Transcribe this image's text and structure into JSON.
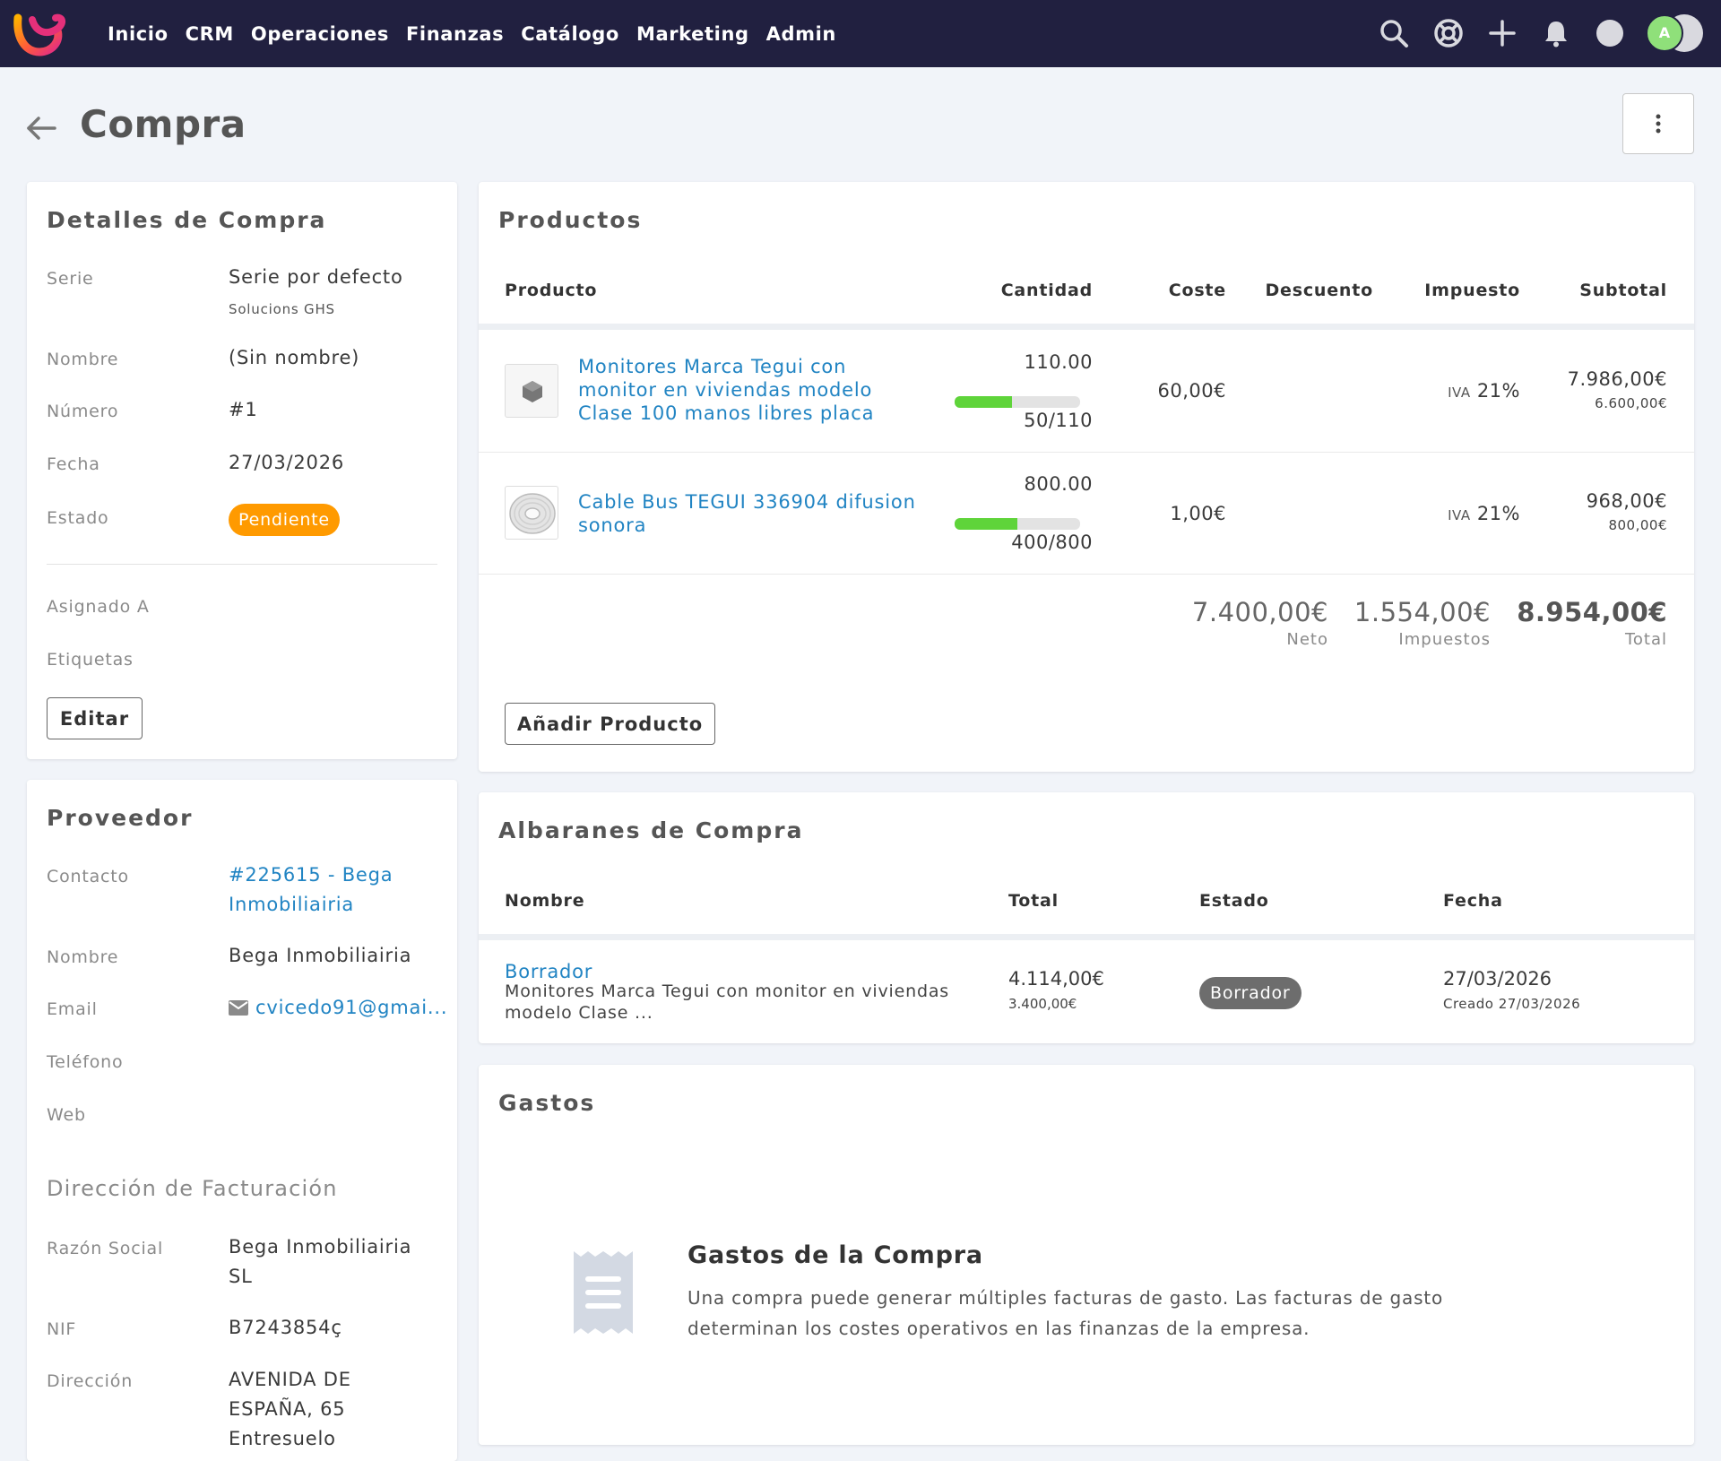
{
  "nav": {
    "items": [
      "Inicio",
      "CRM",
      "Operaciones",
      "Finanzas",
      "Catálogo",
      "Marketing",
      "Admin"
    ],
    "avatar_initial": "A"
  },
  "header": {
    "title": "Compra"
  },
  "detalles": {
    "title": "Detalles de Compra",
    "serie_label": "Serie",
    "serie_value": "Serie por defecto",
    "serie_sub": "Solucions GHS",
    "nombre_label": "Nombre",
    "nombre_value": "(Sin nombre)",
    "numero_label": "Número",
    "numero_value": "#1",
    "fecha_label": "Fecha",
    "fecha_value": "27/03/2026",
    "estado_label": "Estado",
    "estado_value": "Pendiente",
    "asignado_label": "Asignado A",
    "etiquetas_label": "Etiquetas",
    "edit_label": "Editar"
  },
  "proveedor": {
    "title": "Proveedor",
    "contacto_label": "Contacto",
    "contacto_value_1": "#225615 - Bega",
    "contacto_value_2": "Inmobiliairia",
    "nombre_label": "Nombre",
    "nombre_value": "Bega Inmobiliairia",
    "email_label": "Email",
    "email_value": "cvicedo91@gmai...",
    "telefono_label": "Teléfono",
    "web_label": "Web",
    "billing_title": "Dirección de Facturación",
    "razon_label": "Razón Social",
    "razon_value_1": "Bega Inmobiliairia",
    "razon_value_2": "SL",
    "nif_label": "NIF",
    "nif_value": "B7243854ç",
    "direccion_label": "Dirección",
    "direccion_1": "AVENIDA DE",
    "direccion_2": "ESPAÑA, 65",
    "direccion_3": "Entresuelo"
  },
  "productos": {
    "title": "Productos",
    "headers": {
      "producto": "Producto",
      "cantidad": "Cantidad",
      "coste": "Coste",
      "descuento": "Descuento",
      "impuesto": "Impuesto",
      "subtotal": "Subtotal"
    },
    "rows": [
      {
        "name_1": "Monitores Marca Tegui con",
        "name_2": "monitor en viviendas modelo",
        "name_3": "Clase 100 manos libres placa",
        "qty": "110.00",
        "received": "50/110",
        "progress": 0.4545,
        "coste": "60,00€",
        "tax_prefix": "IVA",
        "tax_rate": "21%",
        "subtotal": "7.986,00€",
        "subtotal_sub": "6.600,00€"
      },
      {
        "name_1": "Cable Bus TEGUI 336904 difusion",
        "name_2": "sonora",
        "qty": "800.00",
        "received": "400/800",
        "progress": 0.5,
        "coste": "1,00€",
        "tax_prefix": "IVA",
        "tax_rate": "21%",
        "subtotal": "968,00€",
        "subtotal_sub": "800,00€"
      }
    ],
    "totals": {
      "neto": "7.400,00€",
      "neto_label": "Neto",
      "impuestos": "1.554,00€",
      "impuestos_label": "Impuestos",
      "total": "8.954,00€",
      "total_label": "Total"
    },
    "add_label": "Añadir Producto"
  },
  "albaranes": {
    "title": "Albaranes de Compra",
    "headers": {
      "nombre": "Nombre",
      "total": "Total",
      "estado": "Estado",
      "fecha": "Fecha"
    },
    "row": {
      "name": "Borrador",
      "desc_1": "Monitores Marca Tegui con monitor en viviendas",
      "desc_2": "modelo Clase ...",
      "total": "4.114,00€",
      "total_sub": "3.400,00€",
      "estado": "Borrador",
      "fecha": "27/03/2026",
      "creado": "Creado 27/03/2026"
    }
  },
  "gastos": {
    "title": "Gastos",
    "empty_title": "Gastos de la Compra",
    "empty_text_1": "Una compra puede generar múltiples facturas de gasto. Las facturas de gasto",
    "empty_text_2": "determinan los costes operativos en las finanzas de la empresa."
  },
  "colors": {
    "topbar": "#212040",
    "link": "#2184c3",
    "pending": "#ff9a00",
    "progress": "#5fd43a"
  }
}
